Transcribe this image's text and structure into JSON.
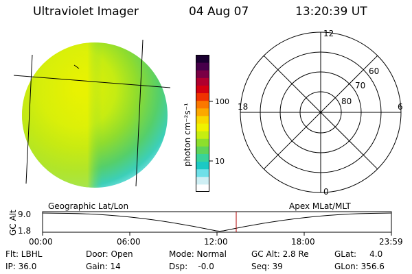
{
  "header": {
    "instrument": "Ultraviolet Imager",
    "date": "04 Aug 07",
    "time": "13:20:39 UT"
  },
  "colorbar": {
    "label": "photon cm⁻²s⁻¹",
    "ticks": [
      "100",
      "10"
    ],
    "colors": [
      "#ffffff",
      "#cfeff4",
      "#6fe0e8",
      "#1cc9c4",
      "#39d39a",
      "#5ed45a",
      "#8ddf2c",
      "#c6ee10",
      "#f0f200",
      "#f9d800",
      "#fca800",
      "#fb7800",
      "#f03200",
      "#d40010",
      "#b0002e",
      "#7a0044",
      "#47004a",
      "#1a0030"
    ]
  },
  "polar": {
    "mlt_labels": {
      "top": "12",
      "left": "18",
      "right": "6",
      "bottom": "0"
    },
    "lat_labels": [
      "60",
      "70",
      "80"
    ]
  },
  "timeline": {
    "left_label": "Geographic Lat/Lon",
    "right_label": "Apex MLat/MLT",
    "axis_title": "GC Alt",
    "y_ticks": [
      "9.0",
      "1.8"
    ],
    "x_ticks": [
      "00:00",
      "06:00",
      "12:00",
      "18:00",
      "23:59"
    ]
  },
  "info": {
    "filter": "Flt: LBHL",
    "door": "Door: Open",
    "mode": "Mode: Normal",
    "gc_alt": "GC Alt: 2.8 Re",
    "glat": "GLat:     4.0",
    "ip": "IP: 36.0",
    "gain": "Gain: 14",
    "dsp": "Dsp:    -0.0",
    "seq": "Seq: 39",
    "glon": "GLon: 356.6"
  }
}
